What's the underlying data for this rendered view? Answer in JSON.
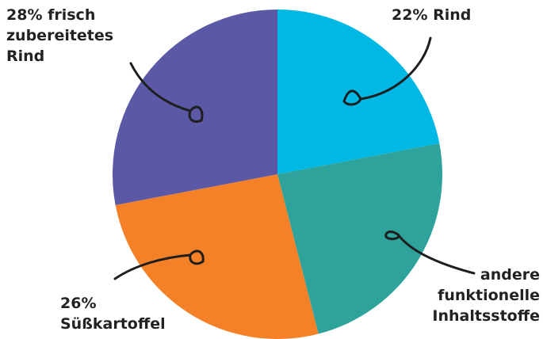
{
  "chart_data": {
    "type": "pie",
    "title": "",
    "start_angle_deg": 0,
    "direction": "clockwise",
    "slices": [
      {
        "label": "22% Rind",
        "value": 22,
        "color": "#00b8e4"
      },
      {
        "label": "andere\nfunktionelle\nInhaltsstoffe",
        "value": 24,
        "color": "#2ea39b"
      },
      {
        "label": "26%\nSüßkartoffel",
        "value": 26,
        "color": "#f48128"
      },
      {
        "label": "28% frisch\nzubereitetes\nRind",
        "value": 28,
        "color": "#5b58a6"
      }
    ]
  }
}
